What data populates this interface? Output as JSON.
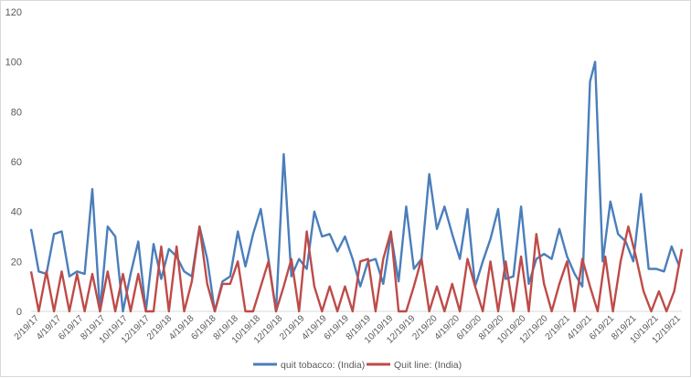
{
  "chart_data": {
    "type": "line",
    "ylim": [
      0,
      120
    ],
    "yticks": [
      0,
      20,
      40,
      60,
      80,
      100,
      120
    ],
    "grid": false,
    "legend": "bottom",
    "x_tick_labels": [
      "2/19/17",
      "4/19/17",
      "6/19/17",
      "8/19/17",
      "10/19/17",
      "12/19/17",
      "2/19/18",
      "4/19/18",
      "6/19/18",
      "8/19/18",
      "10/19/18",
      "12/19/18",
      "2/19/19",
      "4/19/19",
      "6/19/19",
      "8/19/19",
      "10/19/19",
      "12/19/19",
      "2/19/20",
      "4/19/20",
      "6/19/20",
      "8/19/20",
      "10/19/20",
      "12/19/20",
      "2/19/21",
      "4/19/21",
      "6/19/21",
      "8/19/21",
      "10/19/21",
      "12/19/21"
    ],
    "x_range": [
      "2017-02-19",
      "2022-01-09"
    ],
    "series": [
      {
        "name": "quit tobacco: (India)",
        "color": "#4a7ebb",
        "x": [
          "2017-02-19",
          "2017-03-12",
          "2017-04-02",
          "2017-04-23",
          "2017-05-14",
          "2017-06-04",
          "2017-06-25",
          "2017-07-16",
          "2017-08-06",
          "2017-08-27",
          "2017-09-17",
          "2017-10-08",
          "2017-10-29",
          "2017-11-19",
          "2017-12-10",
          "2017-12-31",
          "2018-01-21",
          "2018-02-11",
          "2018-03-04",
          "2018-03-25",
          "2018-04-15",
          "2018-05-06",
          "2018-05-27",
          "2018-06-17",
          "2018-07-08",
          "2018-07-29",
          "2018-08-19",
          "2018-09-09",
          "2018-09-30",
          "2018-10-21",
          "2018-11-11",
          "2018-12-02",
          "2018-12-23",
          "2019-01-13",
          "2019-02-03",
          "2019-02-24",
          "2019-03-17",
          "2019-04-07",
          "2019-04-28",
          "2019-05-19",
          "2019-06-09",
          "2019-06-30",
          "2019-07-21",
          "2019-08-11",
          "2019-09-01",
          "2019-09-22",
          "2019-10-13",
          "2019-11-03",
          "2019-11-24",
          "2019-12-15",
          "2020-01-05",
          "2020-01-26",
          "2020-02-16",
          "2020-03-08",
          "2020-03-29",
          "2020-04-19",
          "2020-05-10",
          "2020-05-31",
          "2020-06-21",
          "2020-07-12",
          "2020-08-02",
          "2020-08-23",
          "2020-09-13",
          "2020-10-04",
          "2020-10-25",
          "2020-11-15",
          "2020-12-06",
          "2020-12-27",
          "2021-01-17",
          "2021-02-07",
          "2021-02-28",
          "2021-03-21",
          "2021-04-11",
          "2021-05-02",
          "2021-05-16",
          "2021-06-06",
          "2021-06-27",
          "2021-07-18",
          "2021-08-08",
          "2021-08-29",
          "2021-09-19",
          "2021-10-10",
          "2021-10-31",
          "2021-11-21",
          "2021-12-12",
          "2022-01-02"
        ],
        "y": [
          33,
          16,
          15,
          31,
          32,
          14,
          16,
          15,
          49,
          0,
          34,
          30,
          0,
          15,
          28,
          0,
          27,
          13,
          25,
          22,
          16,
          14,
          34,
          21,
          0,
          12,
          14,
          32,
          18,
          31,
          41,
          21,
          0,
          63,
          14,
          21,
          17,
          40,
          30,
          31,
          24,
          30,
          21,
          10,
          20,
          21,
          11,
          31,
          12,
          42,
          17,
          21,
          55,
          33,
          42,
          31,
          21,
          41,
          10,
          20,
          29,
          41,
          13,
          14,
          42,
          11,
          21,
          23,
          21,
          33,
          22,
          15,
          10,
          92,
          100,
          20,
          44,
          31,
          28,
          20,
          47,
          17,
          17,
          16,
          26,
          18
        ]
      },
      {
        "name": "Quit line: (India)",
        "color": "#be4b48",
        "x": [
          "2017-02-19",
          "2017-03-12",
          "2017-04-02",
          "2017-04-23",
          "2017-05-14",
          "2017-06-04",
          "2017-06-25",
          "2017-07-16",
          "2017-08-06",
          "2017-08-27",
          "2017-09-17",
          "2017-10-08",
          "2017-10-29",
          "2017-11-19",
          "2017-12-10",
          "2017-12-31",
          "2018-01-21",
          "2018-02-11",
          "2018-03-04",
          "2018-03-25",
          "2018-04-15",
          "2018-05-06",
          "2018-05-27",
          "2018-06-17",
          "2018-07-08",
          "2018-07-29",
          "2018-08-19",
          "2018-09-09",
          "2018-09-30",
          "2018-10-21",
          "2018-11-11",
          "2018-12-02",
          "2018-12-23",
          "2019-01-13",
          "2019-02-03",
          "2019-02-24",
          "2019-03-17",
          "2019-04-07",
          "2019-04-28",
          "2019-05-19",
          "2019-06-09",
          "2019-06-30",
          "2019-07-21",
          "2019-08-11",
          "2019-09-01",
          "2019-09-22",
          "2019-10-13",
          "2019-11-03",
          "2019-11-24",
          "2019-12-15",
          "2020-01-05",
          "2020-01-26",
          "2020-02-16",
          "2020-03-08",
          "2020-03-29",
          "2020-04-19",
          "2020-05-10",
          "2020-05-31",
          "2020-06-21",
          "2020-07-12",
          "2020-08-02",
          "2020-08-23",
          "2020-09-13",
          "2020-10-04",
          "2020-10-25",
          "2020-11-15",
          "2020-12-06",
          "2020-12-27",
          "2021-01-17",
          "2021-02-07",
          "2021-02-28",
          "2021-03-21",
          "2021-04-11",
          "2021-05-02",
          "2021-05-23",
          "2021-06-13",
          "2021-07-04",
          "2021-07-25",
          "2021-08-15",
          "2021-09-05",
          "2021-09-26",
          "2021-10-17",
          "2021-11-07",
          "2021-11-28",
          "2021-12-19",
          "2022-01-09"
        ],
        "y": [
          16,
          0,
          16,
          0,
          16,
          0,
          15,
          0,
          15,
          0,
          16,
          0,
          15,
          0,
          15,
          0,
          0,
          26,
          0,
          26,
          0,
          12,
          34,
          11,
          0,
          11,
          11,
          20,
          0,
          0,
          10,
          20,
          0,
          10,
          21,
          0,
          32,
          10,
          0,
          10,
          0,
          10,
          0,
          20,
          21,
          0,
          21,
          32,
          0,
          0,
          10,
          21,
          0,
          10,
          0,
          11,
          0,
          21,
          10,
          0,
          20,
          0,
          20,
          0,
          22,
          0,
          31,
          11,
          0,
          11,
          20,
          0,
          21,
          10,
          0,
          22,
          0,
          20,
          34,
          22,
          8,
          0,
          8,
          0,
          8,
          25
        ]
      }
    ]
  }
}
